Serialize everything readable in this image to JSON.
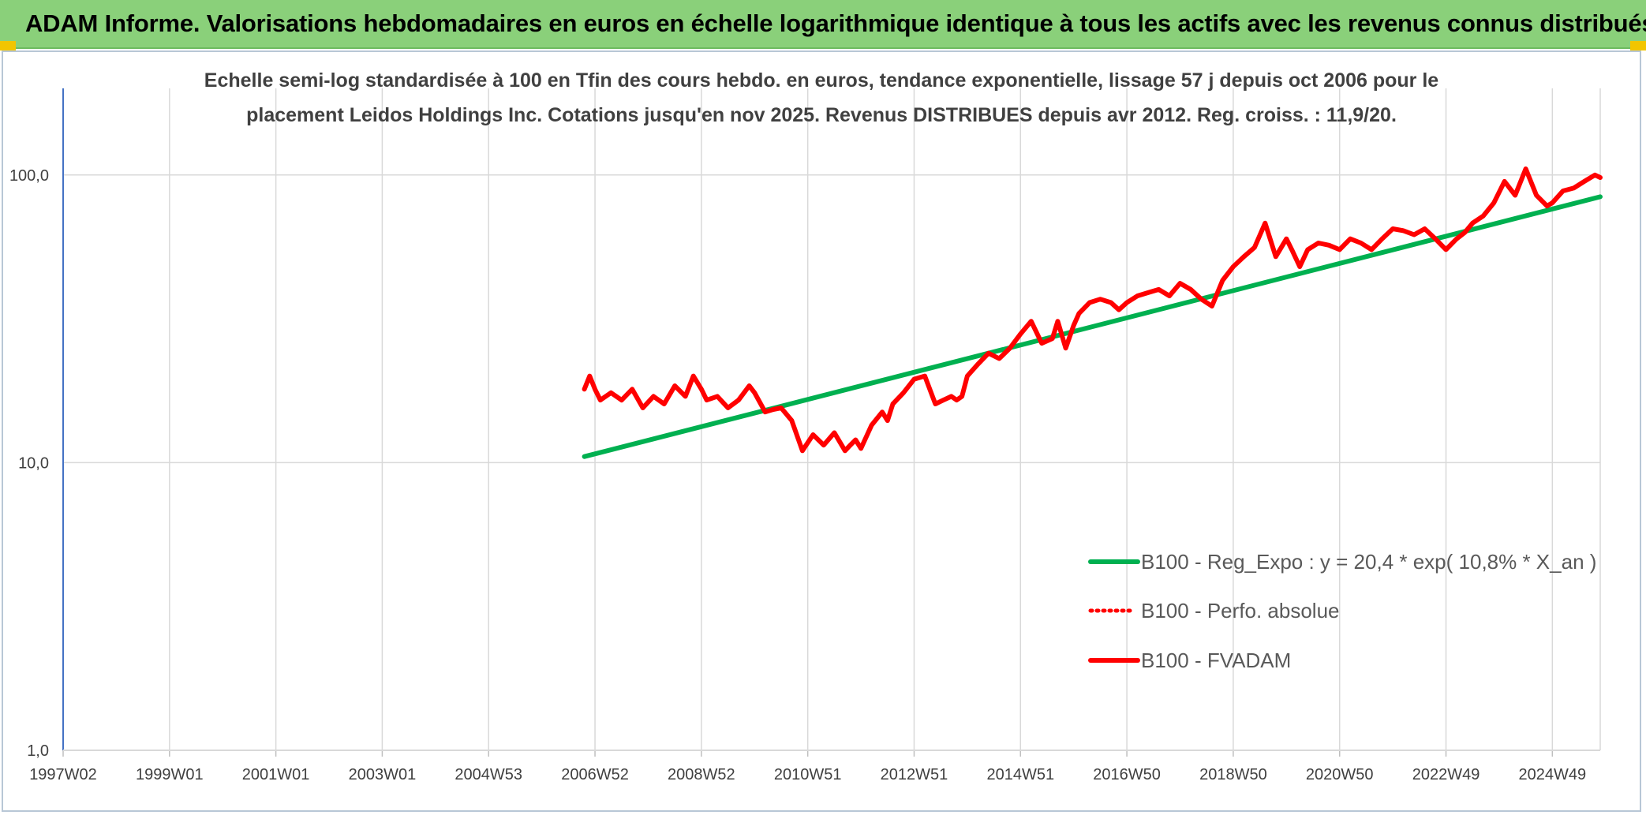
{
  "header": {
    "title": "ADAM Informe. Valorisations hebdomadaires en euros en échelle logarithmique identique à tous les actifs avec les revenus connus distribués"
  },
  "colors": {
    "banner_bg": "#8ad07a",
    "corner_accent": "#f2c500",
    "trend_line": "#00b050",
    "series_line": "#ff0000",
    "grid": "#d9d9d9",
    "axis": "#4472c4"
  },
  "chart_data": {
    "type": "line",
    "title_lines": [
      "Echelle semi-log standardisée à 100 en Tfin des cours hebdo. en euros, tendance exponentielle, lissage 57 j depuis oct 2006 pour le",
      "placement Leidos Holdings Inc. Cotations jusqu'en nov 2025. Revenus DISTRIBUES depuis avr 2012. Reg. croiss. : 11,9/20."
    ],
    "y_scale": "log",
    "ylim": [
      1,
      200
    ],
    "xlim": [
      1997.0,
      2025.9
    ],
    "y_ticks": [
      {
        "value": 1,
        "label": "1,0"
      },
      {
        "value": 10,
        "label": "10,0"
      },
      {
        "value": 100,
        "label": "100,0"
      }
    ],
    "x_ticks": [
      {
        "value": 1997.0,
        "label": "1997W02"
      },
      {
        "value": 1999.0,
        "label": "1999W01"
      },
      {
        "value": 2001.0,
        "label": "2001W01"
      },
      {
        "value": 2003.0,
        "label": "2003W01"
      },
      {
        "value": 2005.0,
        "label": "2004W53"
      },
      {
        "value": 2007.0,
        "label": "2006W52"
      },
      {
        "value": 2009.0,
        "label": "2008W52"
      },
      {
        "value": 2011.0,
        "label": "2010W51"
      },
      {
        "value": 2013.0,
        "label": "2012W51"
      },
      {
        "value": 2015.0,
        "label": "2014W51"
      },
      {
        "value": 2017.0,
        "label": "2016W50"
      },
      {
        "value": 2019.0,
        "label": "2018W50"
      },
      {
        "value": 2021.0,
        "label": "2020W50"
      },
      {
        "value": 2023.0,
        "label": "2022W49"
      },
      {
        "value": 2025.0,
        "label": "2024W49"
      }
    ],
    "legend": {
      "placement": "bottom-right",
      "entries": [
        {
          "label": "B100 - Reg_Expo : y = 20,4 * exp( 10,8% *  X_an )",
          "style": "solid",
          "color": "#00b050"
        },
        {
          "label": "B100 - Perfo. absolue",
          "style": "dotted",
          "color": "#ff0000"
        },
        {
          "label": "B100 - FVADAM",
          "style": "solid",
          "color": "#ff0000"
        }
      ]
    },
    "series": [
      {
        "name": "B100 - Reg_Expo",
        "color": "#00b050",
        "x": [
          2006.8,
          2025.9
        ],
        "y": [
          10.5,
          84
        ]
      },
      {
        "name": "B100 - Perfo. absolue",
        "color": "#ff0000",
        "x": [],
        "y": []
      },
      {
        "name": "B100 - FVADAM",
        "color": "#ff0000",
        "x": [
          2006.8,
          2006.9,
          2007.0,
          2007.1,
          2007.3,
          2007.5,
          2007.7,
          2007.9,
          2008.1,
          2008.3,
          2008.5,
          2008.7,
          2008.85,
          2009.0,
          2009.1,
          2009.3,
          2009.5,
          2009.7,
          2009.9,
          2010.0,
          2010.2,
          2010.35,
          2010.5,
          2010.7,
          2010.9,
          2011.1,
          2011.3,
          2011.5,
          2011.7,
          2011.8,
          2011.9,
          2012.0,
          2012.2,
          2012.4,
          2012.5,
          2012.6,
          2012.8,
          2013.0,
          2013.2,
          2013.4,
          2013.55,
          2013.7,
          2013.8,
          2013.9,
          2014.0,
          2014.2,
          2014.4,
          2014.6,
          2014.8,
          2015.0,
          2015.2,
          2015.4,
          2015.6,
          2015.7,
          2015.85,
          2016.0,
          2016.1,
          2016.3,
          2016.5,
          2016.7,
          2016.85,
          2017.0,
          2017.2,
          2017.4,
          2017.6,
          2017.8,
          2018.0,
          2018.2,
          2018.4,
          2018.6,
          2018.8,
          2019.0,
          2019.2,
          2019.4,
          2019.6,
          2019.8,
          2020.0,
          2020.1,
          2020.25,
          2020.4,
          2020.6,
          2020.8,
          2021.0,
          2021.2,
          2021.4,
          2021.6,
          2021.8,
          2022.0,
          2022.2,
          2022.4,
          2022.6,
          2022.8,
          2023.0,
          2023.2,
          2023.35,
          2023.5,
          2023.7,
          2023.9,
          2024.1,
          2024.3,
          2024.5,
          2024.7,
          2024.9,
          2025.0,
          2025.2,
          2025.4,
          2025.6,
          2025.8,
          2025.9
        ],
        "y": [
          18,
          20,
          18,
          16.5,
          17.5,
          16.5,
          18,
          15.5,
          17,
          16,
          18.5,
          17,
          20,
          18,
          16.5,
          17,
          15.5,
          16.5,
          18.5,
          17.5,
          15,
          15.3,
          15.5,
          14,
          11,
          12.5,
          11.5,
          12.7,
          11,
          11.5,
          12,
          11.2,
          13.5,
          15,
          14,
          16,
          17.5,
          19.5,
          20,
          16,
          16.5,
          17,
          16.5,
          17,
          20,
          22,
          24,
          23,
          25,
          28,
          31,
          26,
          27,
          31,
          25,
          30,
          33,
          36,
          37,
          36,
          34,
          36,
          38,
          39,
          40,
          38,
          42,
          40,
          37,
          35,
          43,
          48,
          52,
          56,
          68,
          52,
          60,
          55,
          48,
          55,
          58,
          57,
          55,
          60,
          58,
          55,
          60,
          65,
          64,
          62,
          65,
          60,
          55,
          60,
          63,
          68,
          72,
          80,
          95,
          85,
          105,
          85,
          78,
          80,
          88,
          90,
          95,
          100,
          98
        ]
      }
    ]
  }
}
